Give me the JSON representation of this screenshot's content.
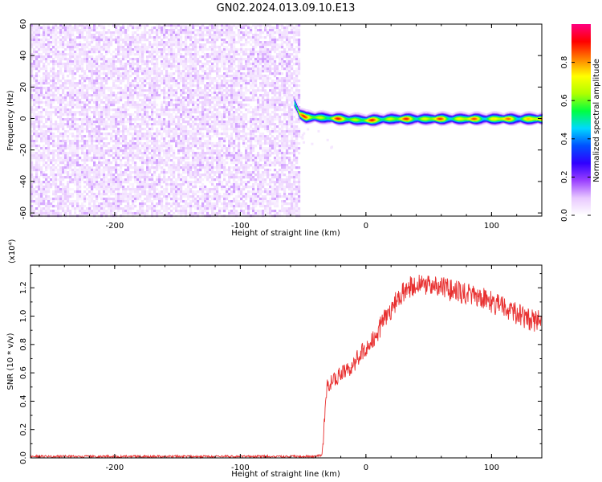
{
  "title": "GN02.2024.013.09.10.E13",
  "chart_data": [
    {
      "type": "heatmap",
      "xlabel": "Height of straight line (km)",
      "ylabel": "Frequency (Hz)",
      "xlim": [
        -267,
        140
      ],
      "ylim": [
        -62,
        60
      ],
      "xticks": [
        -200,
        -100,
        0,
        100
      ],
      "yticks": [
        -60,
        -40,
        -20,
        0,
        20,
        40,
        60
      ],
      "colorbar": {
        "label": "Normalized spectral amplitude",
        "range": [
          0,
          1
        ],
        "ticks": [
          "0.0",
          "0.2",
          "0.4",
          "0.6",
          "0.8"
        ],
        "colors": [
          "#ffffff",
          "#e8c8ff",
          "#9a40ff",
          "#3000ff",
          "#0050ff",
          "#00d8ff",
          "#00ff40",
          "#b0ff00",
          "#ffff00",
          "#ff8000",
          "#ff0000",
          "#ff0080"
        ]
      },
      "noise_region": {
        "x": [
          -267,
          -53
        ],
        "y": [
          -62,
          60
        ],
        "amplitude_range": [
          0.0,
          0.12
        ]
      },
      "carrier": {
        "x_start": -57,
        "x_end": 140,
        "frequency_hz": [
          [
            -57,
            10
          ],
          [
            -53,
            3
          ],
          [
            -48,
            1
          ],
          [
            -40,
            1
          ],
          [
            -20,
            0
          ],
          [
            0,
            -1
          ],
          [
            20,
            0
          ],
          [
            60,
            0
          ],
          [
            100,
            0
          ],
          [
            140,
            0
          ]
        ],
        "peak_amplitude": 0.9
      }
    },
    {
      "type": "line",
      "xlabel": "Height of straight line (km)",
      "ylabel": "SNR (10 * v/v)",
      "y_multiplier": "(x10⁴)",
      "xlim": [
        -267,
        140
      ],
      "ylim": [
        0,
        1.36
      ],
      "xticks": [
        -200,
        -100,
        0,
        100
      ],
      "yticks": [
        "0.0",
        "0.2",
        "0.4",
        "0.6",
        "0.8",
        "1.0",
        "1.2"
      ],
      "color": "#e83030",
      "series": [
        {
          "x": [
            -267,
            -200,
            -100,
            -40,
            -35,
            -33,
            -31,
            -30,
            -25,
            -20,
            -15,
            -10,
            -5,
            0,
            10,
            20,
            30,
            40,
            50,
            60,
            70,
            80,
            90,
            100,
            110,
            120,
            130,
            135,
            140
          ],
          "values": [
            0.01,
            0.01,
            0.01,
            0.01,
            0.02,
            0.25,
            0.5,
            0.52,
            0.55,
            0.6,
            0.62,
            0.66,
            0.72,
            0.78,
            0.9,
            1.05,
            1.18,
            1.23,
            1.22,
            1.2,
            1.18,
            1.16,
            1.14,
            1.1,
            1.06,
            1.02,
            0.98,
            0.96,
            0.98
          ]
        }
      ]
    }
  ]
}
